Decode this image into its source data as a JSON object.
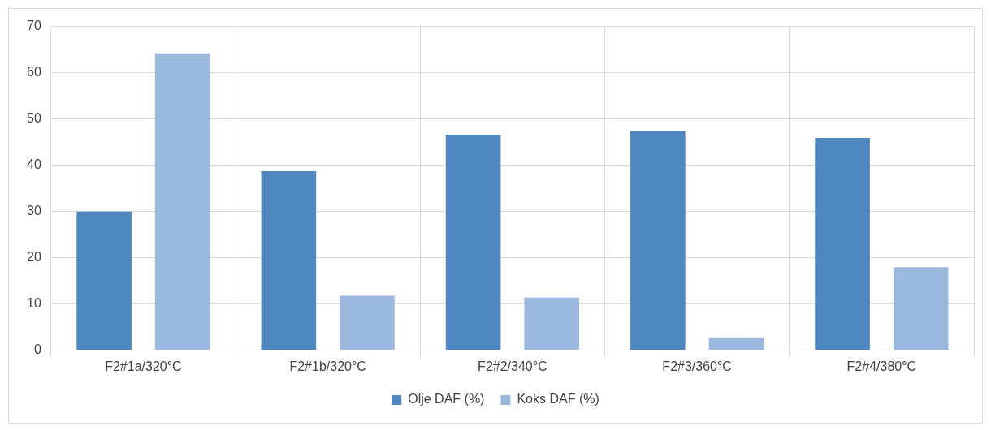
{
  "chart_data": {
    "type": "bar",
    "categories": [
      "F2#1a/320°C",
      "F2#1b/320°C",
      "F2#2/340°C",
      "F2#3/360°C",
      "F2#4/380°C"
    ],
    "series": [
      {
        "name": "Olje DAF (%)",
        "color": "#4f88c0",
        "values": [
          30,
          38.7,
          46.6,
          47.4,
          45.9
        ]
      },
      {
        "name": "Koks DAF (%)",
        "color": "#9bb9df",
        "values": [
          64.2,
          11.8,
          11.4,
          2.8,
          18
        ]
      }
    ],
    "ylim": [
      0,
      70
    ],
    "yticks": [
      0,
      10,
      20,
      30,
      40,
      50,
      60,
      70
    ],
    "grid": true,
    "legend": "bottom"
  }
}
